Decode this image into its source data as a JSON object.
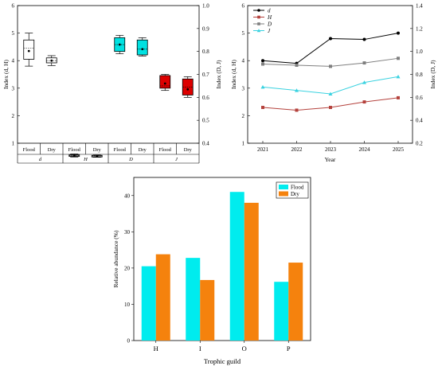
{
  "chart_data": [
    {
      "type": "box",
      "groups": [
        {
          "index": "d",
          "boxes": [
            {
              "season": "Flood",
              "min": 3.8,
              "q1": 4.05,
              "median": 4.45,
              "mean": 4.35,
              "q3": 4.75,
              "max": 5.0,
              "color": "#ffffff"
            },
            {
              "season": "Dry",
              "min": 3.82,
              "q1": 3.92,
              "median": 4.0,
              "mean": 4.0,
              "q3": 4.1,
              "max": 4.18,
              "color": "#ffffff"
            }
          ]
        },
        {
          "index": "H",
          "boxes": [
            {
              "season": "Flood",
              "min": 0.5,
              "q1": 0.52,
              "median": 0.55,
              "mean": 0.55,
              "q3": 0.58,
              "max": 0.61,
              "color": "#a7a7a7"
            },
            {
              "season": "Dry",
              "min": 0.49,
              "q1": 0.5,
              "median": 0.54,
              "mean": 0.53,
              "q3": 0.56,
              "max": 0.57,
              "color": "#a7a7a7"
            }
          ]
        },
        {
          "index": "D",
          "boxes": [
            {
              "season": "Flood",
              "min": 0.79,
              "q1": 0.8,
              "median": 0.83,
              "mean": 0.83,
              "q3": 0.86,
              "max": 0.87,
              "color": "#00e1e1"
            },
            {
              "season": "Dry",
              "min": 0.78,
              "q1": 0.785,
              "median": 0.81,
              "mean": 0.81,
              "q3": 0.85,
              "max": 0.86,
              "color": "#00e1e1"
            }
          ]
        },
        {
          "index": "J",
          "boxes": [
            {
              "season": "Flood",
              "min": 0.63,
              "q1": 0.64,
              "median": 0.65,
              "mean": 0.66,
              "q3": 0.695,
              "max": 0.7,
              "color": "#dd0000"
            },
            {
              "season": "Dry",
              "min": 0.6,
              "q1": 0.61,
              "median": 0.645,
              "mean": 0.635,
              "q3": 0.68,
              "max": 0.69,
              "color": "#dd0000"
            }
          ]
        }
      ],
      "season_labels": [
        "Flood",
        "Dry",
        "Flood",
        "Dry",
        "Flood",
        "Dry",
        "Flood",
        "Dry"
      ],
      "index_labels": [
        "d",
        "H",
        "D",
        "J"
      ],
      "ylabel_left": "Index (d, H)",
      "ylabel_right": "Index (D, J)",
      "ylim_left": [
        1,
        6
      ],
      "ylim_right": [
        0.4,
        1.0
      ],
      "yticks_left": [
        "1",
        "2",
        "3",
        "4",
        "5",
        "6"
      ],
      "yticks_right": [
        "0.4",
        "0.5",
        "0.6",
        "0.7",
        "0.8",
        "0.9",
        "1.0"
      ]
    },
    {
      "type": "line",
      "x": [
        "2021",
        "2022",
        "2023",
        "2024",
        "2025"
      ],
      "xlabel": "Year",
      "ylabel_left": "Index (d, H)",
      "ylabel_right": "Index (D, J)",
      "ylim_left": [
        1,
        6
      ],
      "ylim_right": [
        0.2,
        1.4
      ],
      "yticks_left": [
        "1",
        "2",
        "3",
        "4",
        "5",
        "6"
      ],
      "yticks_right": [
        "0.2",
        "0.4",
        "0.6",
        "0.8",
        "1.0",
        "1.2",
        "1.4"
      ],
      "legend_position": "top-left",
      "series": [
        {
          "name": "d",
          "axis": "left",
          "values": [
            4.0,
            3.9,
            4.8,
            4.77,
            5.0
          ],
          "color": "#000000",
          "marker": "circle"
        },
        {
          "name": "H",
          "axis": "left",
          "values": [
            2.3,
            2.2,
            2.3,
            2.5,
            2.65
          ],
          "color": "#b4413c",
          "marker": "square"
        },
        {
          "name": "D",
          "axis": "right",
          "values": [
            0.89,
            0.88,
            0.87,
            0.9,
            0.94
          ],
          "color": "#7f7f7f",
          "marker": "square"
        },
        {
          "name": "J",
          "axis": "right",
          "values": [
            0.69,
            0.66,
            0.63,
            0.73,
            0.78
          ],
          "color": "#3ad2e0",
          "marker": "triangle"
        }
      ]
    },
    {
      "type": "bar",
      "categories": [
        "H",
        "I",
        "O",
        "P"
      ],
      "xlabel": "Trophic guild",
      "ylabel": "Relative abundance (%)",
      "ylim": [
        0,
        45
      ],
      "yticks": [
        "0",
        "10",
        "20",
        "30",
        "40"
      ],
      "legend_position": "top-right",
      "series": [
        {
          "name": "Flood",
          "values": [
            20.5,
            22.8,
            41.0,
            16.2
          ],
          "color": "#00ecee"
        },
        {
          "name": "Dry",
          "values": [
            23.8,
            16.7,
            38.0,
            21.5
          ],
          "color": "#f5820d"
        }
      ]
    }
  ]
}
